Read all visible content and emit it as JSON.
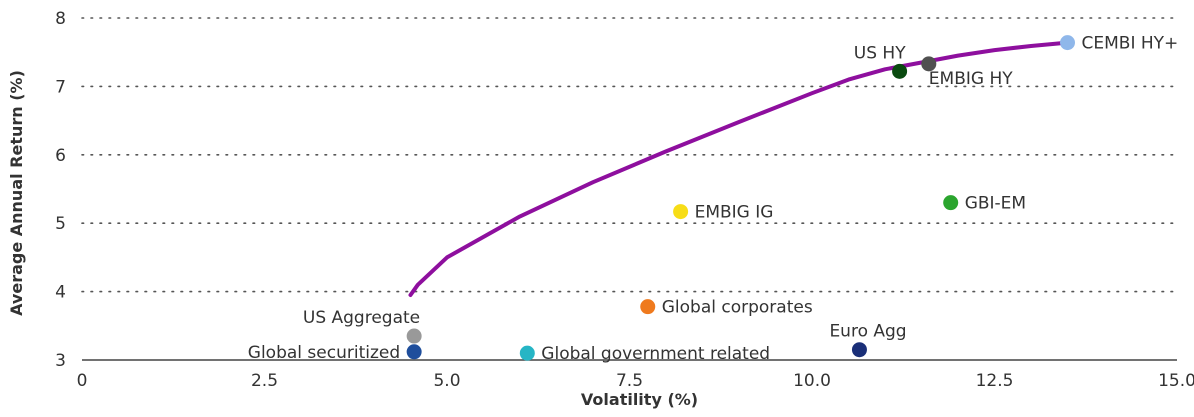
{
  "chart_data": {
    "type": "scatter",
    "title": "",
    "xlabel": "Volatility (%)",
    "ylabel": "Average Annual Return (%)",
    "xlim": [
      0,
      15
    ],
    "ylim": [
      3,
      8
    ],
    "x_ticks": [
      0,
      2.5,
      5,
      7.5,
      10,
      12.5,
      15
    ],
    "x_tick_labels": [
      "0",
      "2.5",
      "5.0",
      "7.5",
      "10.0",
      "12.5",
      "15.0"
    ],
    "y_ticks": [
      3,
      4,
      5,
      6,
      7,
      8
    ],
    "y_tick_labels": [
      "3",
      "4",
      "5",
      "6",
      "7",
      "8"
    ],
    "grid": "horizontal dotted",
    "frontier": {
      "color": "#8e0f9e",
      "x": [
        4.5,
        4.6,
        5.0,
        6.0,
        7.0,
        8.0,
        9.0,
        10.0,
        10.5,
        11.0,
        11.5,
        12.0,
        12.5,
        13.0,
        13.5
      ],
      "y": [
        3.95,
        4.1,
        4.5,
        5.1,
        5.6,
        6.05,
        6.48,
        6.9,
        7.1,
        7.25,
        7.35,
        7.45,
        7.53,
        7.59,
        7.64
      ]
    },
    "points": [
      {
        "name": "US HY",
        "x": 11.2,
        "y": 7.22,
        "color": "#0a4a10",
        "label_pos": "above-left"
      },
      {
        "name": "EMBIG HY",
        "x": 11.6,
        "y": 7.33,
        "color": "#505050",
        "label_pos": "below-right"
      },
      {
        "name": "CEMBI HY+",
        "x": 13.5,
        "y": 7.64,
        "color": "#8fb7ea",
        "label_pos": "right"
      },
      {
        "name": "EMBIG IG",
        "x": 8.2,
        "y": 5.17,
        "color": "#f7dd17",
        "label_pos": "right"
      },
      {
        "name": "GBI-EM",
        "x": 11.9,
        "y": 5.3,
        "color": "#2ba52e",
        "label_pos": "right"
      },
      {
        "name": "Global corporates",
        "x": 7.75,
        "y": 3.78,
        "color": "#ef7a1e",
        "label_pos": "right"
      },
      {
        "name": "US Aggregate",
        "x": 4.55,
        "y": 3.35,
        "color": "#999999",
        "label_pos": "above-left"
      },
      {
        "name": "Global securitized",
        "x": 4.55,
        "y": 3.12,
        "color": "#1f4e9c",
        "label_pos": "left"
      },
      {
        "name": "Global government related",
        "x": 6.1,
        "y": 3.1,
        "color": "#26b5c5",
        "label_pos": "right"
      },
      {
        "name": "Euro Agg",
        "x": 10.65,
        "y": 3.15,
        "color": "#1a2f78",
        "label_pos": "above-right"
      }
    ]
  }
}
